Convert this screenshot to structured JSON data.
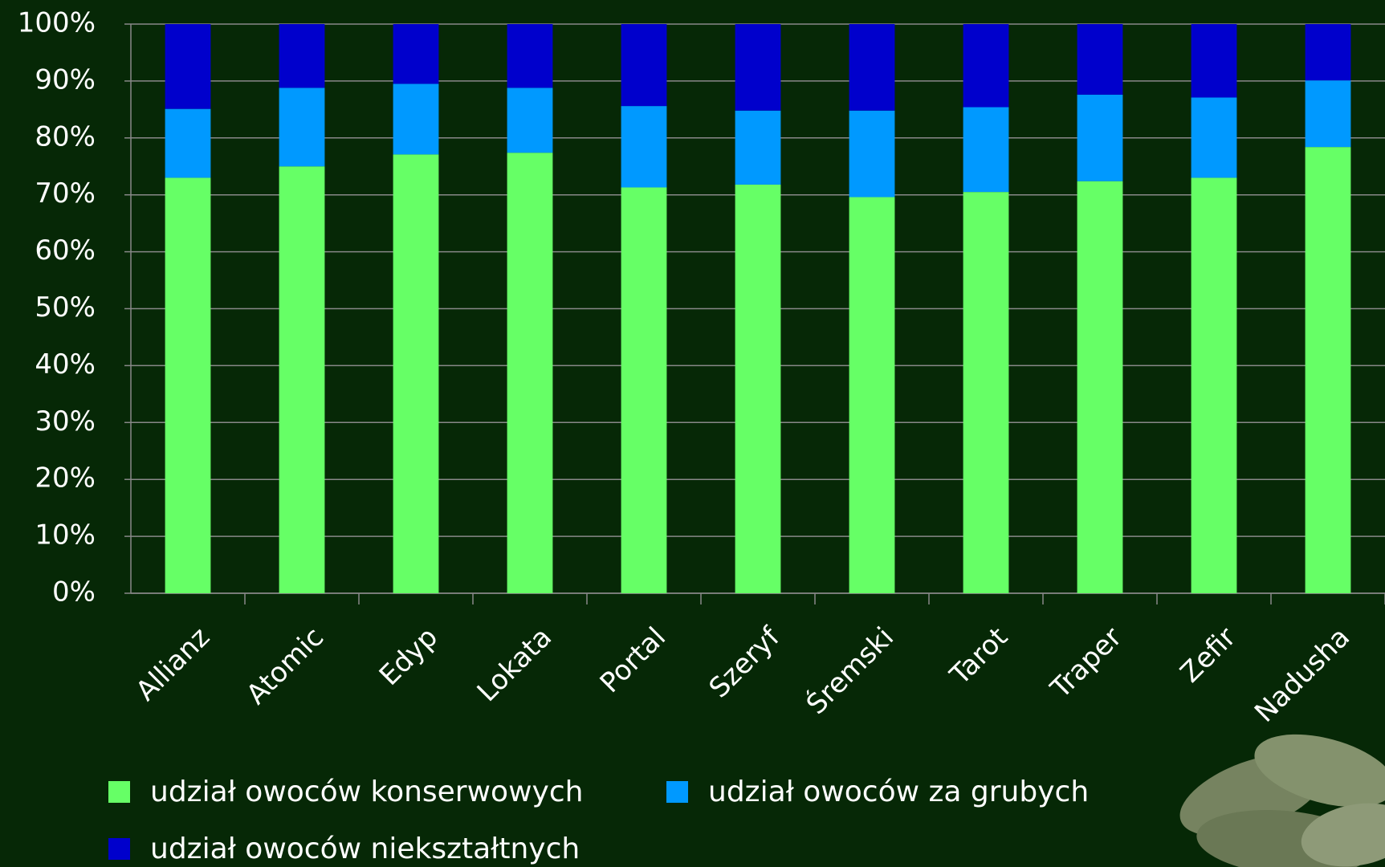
{
  "chart_data": {
    "type": "stacked_bar",
    "categories": [
      "Allianz",
      "Atomic",
      "Edyp",
      "Lokata",
      "Portal",
      "Szeryf",
      "Śremski",
      "Tarot",
      "Traper",
      "Zefir",
      "Nadusha"
    ],
    "series": [
      {
        "name": "udział owoców konserwowych",
        "color": "#66ff66",
        "values": [
          73.0,
          75.0,
          77.1,
          77.4,
          71.3,
          71.8,
          69.6,
          70.5,
          72.4,
          73.0,
          78.4
        ]
      },
      {
        "name": "udział owoców za grubych",
        "color": "#0099ff",
        "values": [
          12.1,
          13.8,
          12.4,
          11.4,
          14.3,
          13.0,
          15.2,
          14.9,
          15.2,
          14.1,
          11.7
        ]
      },
      {
        "name": "udział owoców niekształtnych",
        "color": "#0000cc",
        "values": [
          14.9,
          11.2,
          10.5,
          11.2,
          14.4,
          15.2,
          15.2,
          14.6,
          12.4,
          12.9,
          9.9
        ]
      }
    ],
    "ylim": [
      0,
      100
    ],
    "yticks": [
      {
        "value": 0,
        "label": "0%"
      },
      {
        "value": 10,
        "label": "10%"
      },
      {
        "value": 20,
        "label": "20%"
      },
      {
        "value": 30,
        "label": "30%"
      },
      {
        "value": 40,
        "label": "40%"
      },
      {
        "value": 50,
        "label": "50%"
      },
      {
        "value": 60,
        "label": "60%"
      },
      {
        "value": 70,
        "label": "70%"
      },
      {
        "value": 80,
        "label": "80%"
      },
      {
        "value": 90,
        "label": "90%"
      },
      {
        "value": 100,
        "label": "100%"
      }
    ],
    "grid": true
  }
}
